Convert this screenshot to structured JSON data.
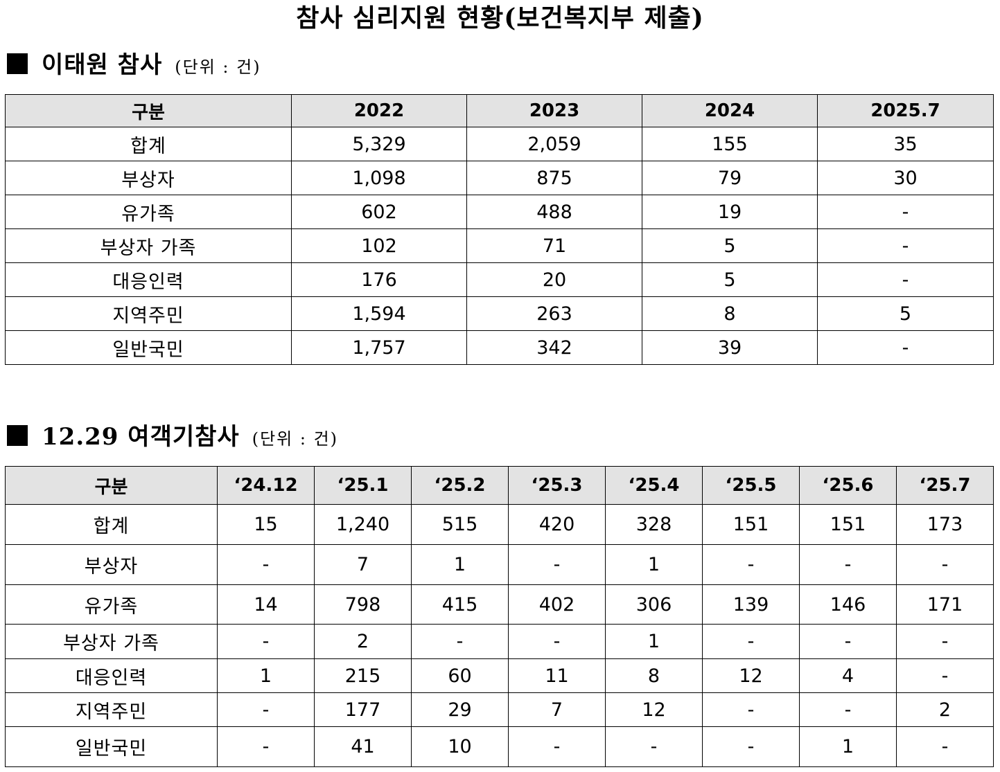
{
  "title": "참사 심리지원 현황(보건복지부 제출)",
  "section1": {
    "heading": "이태원 참사",
    "unit": "(단위 : 건)",
    "columns": [
      "구분",
      "2022",
      "2023",
      "2024",
      "2025.7"
    ],
    "rows": [
      [
        "합계",
        "5,329",
        "2,059",
        "155",
        "35"
      ],
      [
        "부상자",
        "1,098",
        "875",
        "79",
        "30"
      ],
      [
        "유가족",
        "602",
        "488",
        "19",
        "-"
      ],
      [
        "부상자 가족",
        "102",
        "71",
        "5",
        "-"
      ],
      [
        "대응인력",
        "176",
        "20",
        "5",
        "-"
      ],
      [
        "지역주민",
        "1,594",
        "263",
        "8",
        "5"
      ],
      [
        "일반국민",
        "1,757",
        "342",
        "39",
        "-"
      ]
    ]
  },
  "section2": {
    "heading": "12.29 여객기참사",
    "unit": "(단위 : 건)",
    "columns": [
      "구분",
      "‘24.12",
      "‘25.1",
      "‘25.2",
      "‘25.3",
      "‘25.4",
      "‘25.5",
      "‘25.6",
      "‘25.7"
    ],
    "rows": [
      [
        "합계",
        "15",
        "1,240",
        "515",
        "420",
        "328",
        "151",
        "151",
        "173"
      ],
      [
        "부상자",
        "-",
        "7",
        "1",
        "-",
        "1",
        "-",
        "-",
        "-"
      ],
      [
        "유가족",
        "14",
        "798",
        "415",
        "402",
        "306",
        "139",
        "146",
        "171"
      ],
      [
        "부상자 가족",
        "-",
        "2",
        "-",
        "-",
        "1",
        "-",
        "-",
        "-"
      ],
      [
        "대응인력",
        "1",
        "215",
        "60",
        "11",
        "8",
        "12",
        "4",
        "-"
      ],
      [
        "지역주민",
        "-",
        "177",
        "29",
        "7",
        "12",
        "-",
        "-",
        "2"
      ],
      [
        "일반국민",
        "-",
        "41",
        "10",
        "-",
        "-",
        "-",
        "1",
        "-"
      ]
    ]
  }
}
